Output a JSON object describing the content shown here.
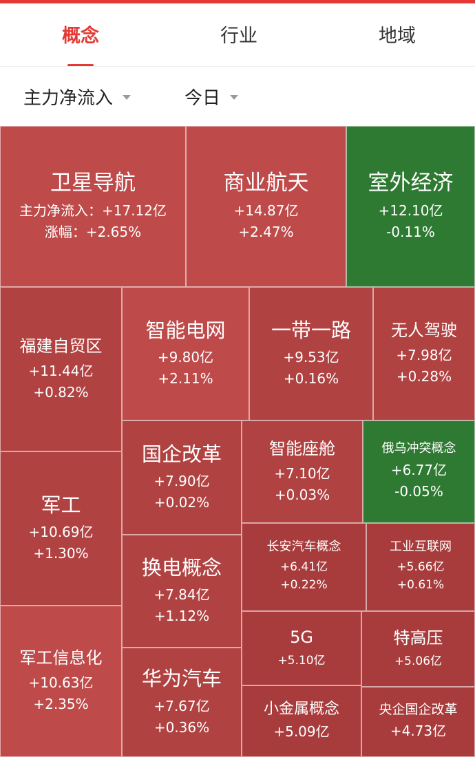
{
  "tabs": [
    {
      "label": "概念",
      "active": true
    },
    {
      "label": "行业",
      "active": false
    },
    {
      "label": "地域",
      "active": false
    }
  ],
  "filters": {
    "metric": "主力净流入",
    "period": "今日"
  },
  "colors": {
    "accent": "#e53935",
    "rise": "#b14242",
    "fall": "#2f7a32"
  },
  "tiles": [
    {
      "name": "卫星导航",
      "flow": "主力净流入：+17.12亿",
      "change": "涨幅：+2.65%"
    },
    {
      "name": "商业航天",
      "flow": "+14.87亿",
      "change": "+2.47%"
    },
    {
      "name": "室外经济",
      "flow": "+12.10亿",
      "change": "-0.11%"
    },
    {
      "name": "福建自贸区",
      "flow": "+11.44亿",
      "change": "+0.82%"
    },
    {
      "name": "智能电网",
      "flow": "+9.80亿",
      "change": "+2.11%"
    },
    {
      "name": "一带一路",
      "flow": "+9.53亿",
      "change": "+0.16%"
    },
    {
      "name": "无人驾驶",
      "flow": "+7.98亿",
      "change": "+0.28%"
    },
    {
      "name": "国企改革",
      "flow": "+7.90亿",
      "change": "+0.02%"
    },
    {
      "name": "智能座舱",
      "flow": "+7.10亿",
      "change": "+0.03%"
    },
    {
      "name": "俄乌冲突概念",
      "flow": "+6.77亿",
      "change": "-0.05%"
    },
    {
      "name": "军工",
      "flow": "+10.69亿",
      "change": "+1.30%"
    },
    {
      "name": "换电概念",
      "flow": "+7.84亿",
      "change": "+1.12%"
    },
    {
      "name": "长安汽车概念",
      "flow": "+6.41亿",
      "change": "+0.22%"
    },
    {
      "name": "工业互联网",
      "flow": "+5.66亿",
      "change": "+0.61%"
    },
    {
      "name": "军工信息化",
      "flow": "+10.63亿",
      "change": "+2.35%"
    },
    {
      "name": "华为汽车",
      "flow": "+7.67亿",
      "change": "+0.36%"
    },
    {
      "name": "5G",
      "flow": "+5.10亿",
      "change": ""
    },
    {
      "name": "特高压",
      "flow": "+5.06亿",
      "change": ""
    },
    {
      "name": "小金属概念",
      "flow": "+5.09亿",
      "change": ""
    },
    {
      "name": "央企国企改革",
      "flow": "+4.73亿",
      "change": ""
    }
  ]
}
